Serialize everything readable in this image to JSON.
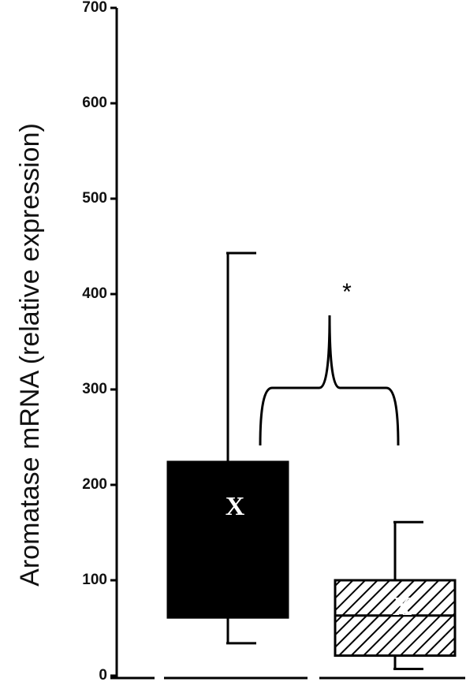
{
  "chart_data": {
    "type": "box",
    "y_label": "Aromatase mRNA (relative expression)",
    "categories": [
      null,
      null
    ],
    "boxes": [
      {
        "whisker_low": 34,
        "q1": 61,
        "median": null,
        "q3": 224,
        "whisker_high": 443,
        "mean": 175,
        "style": "solid"
      },
      {
        "whisker_low": 7,
        "q1": 21,
        "median": 63,
        "q3": 100,
        "whisker_high": 161,
        "mean": 70,
        "style": "hatched"
      }
    ],
    "mean_marker": "X",
    "annotation": "*",
    "color": "#000000",
    "ylim": [
      0,
      700
    ],
    "yticks": [
      0,
      100,
      200,
      300,
      400,
      500,
      600,
      700
    ],
    "grid": false
  }
}
